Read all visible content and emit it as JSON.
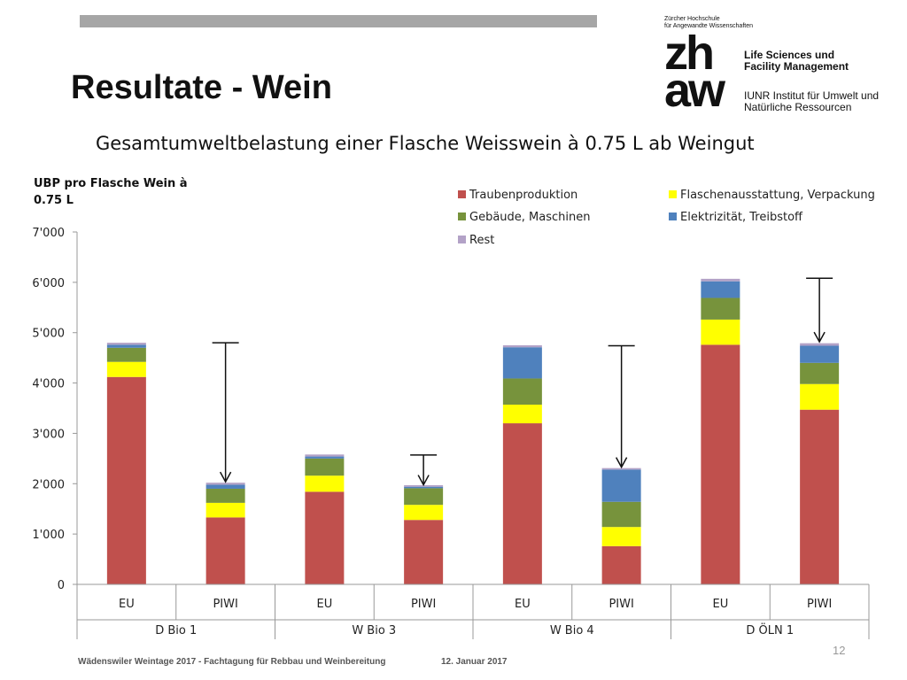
{
  "slide": {
    "title": "Resultate - Wein",
    "subtitle": "Gesamtumweltbelastung einer Flasche Weisswein à 0.75 L ab Weingut",
    "page_number": "12",
    "footer_left": "Wädenswiler Weintage 2017 - Fachtagung für Rebbau und Weinbereitung",
    "footer_date": "12. Januar 2017"
  },
  "logo": {
    "university": [
      "Zürcher Hochschule",
      "für Angewandte Wissenschaften"
    ],
    "mark_top": "zh",
    "mark_bottom": "aw",
    "department": [
      "Life Sciences und",
      "Facility Management"
    ],
    "institute": [
      "IUNR Institut für Umwelt und",
      "Natürliche Ressourcen"
    ]
  },
  "chart_data": {
    "type": "bar",
    "stacked": true,
    "ylabel": "UBP pro Flasche Wein à 0.75 L",
    "ylim": [
      0,
      7000
    ],
    "yticks": [
      "0",
      "1'000",
      "2'000",
      "3'000",
      "4'000",
      "5'000",
      "6'000",
      "7'000"
    ],
    "ytick_values": [
      0,
      1000,
      2000,
      3000,
      4000,
      5000,
      6000,
      7000
    ],
    "categories": [
      "EU",
      "PIWI",
      "EU",
      "PIWI",
      "EU",
      "PIWI",
      "EU",
      "PIWI"
    ],
    "groups": [
      {
        "label": "D Bio 1",
        "span": 2
      },
      {
        "label": "W Bio 3",
        "span": 2
      },
      {
        "label": "W Bio 4",
        "span": 2
      },
      {
        "label": "D ÖLN 1",
        "span": 2
      }
    ],
    "series": [
      {
        "name": "Traubenproduktion",
        "color": "#c0504d",
        "values": [
          4120,
          1330,
          1840,
          1280,
          3200,
          760,
          4760,
          3470
        ]
      },
      {
        "name": "Flaschenausstattung, Verpackung",
        "color": "#ffff00",
        "values": [
          300,
          290,
          320,
          300,
          370,
          380,
          500,
          510
        ]
      },
      {
        "name": "Gebäude, Maschinen",
        "color": "#77933c",
        "values": [
          280,
          280,
          340,
          330,
          520,
          500,
          430,
          420
        ]
      },
      {
        "name": "Elektrizität, Treibstoff",
        "color": "#4f81bd",
        "values": [
          60,
          80,
          40,
          30,
          620,
          640,
          330,
          340
        ]
      },
      {
        "name": "Rest",
        "color": "#b3a2c7",
        "values": [
          40,
          40,
          40,
          30,
          40,
          30,
          50,
          50
        ]
      }
    ],
    "legend_position": "top-right",
    "arrows": [
      {
        "category_index": 1,
        "from": 4800,
        "to": 2020
      },
      {
        "category_index": 3,
        "from": 2570,
        "to": 1960
      },
      {
        "category_index": 5,
        "from": 4740,
        "to": 2310
      },
      {
        "category_index": 7,
        "from": 6080,
        "to": 4800
      }
    ],
    "grid": false
  }
}
